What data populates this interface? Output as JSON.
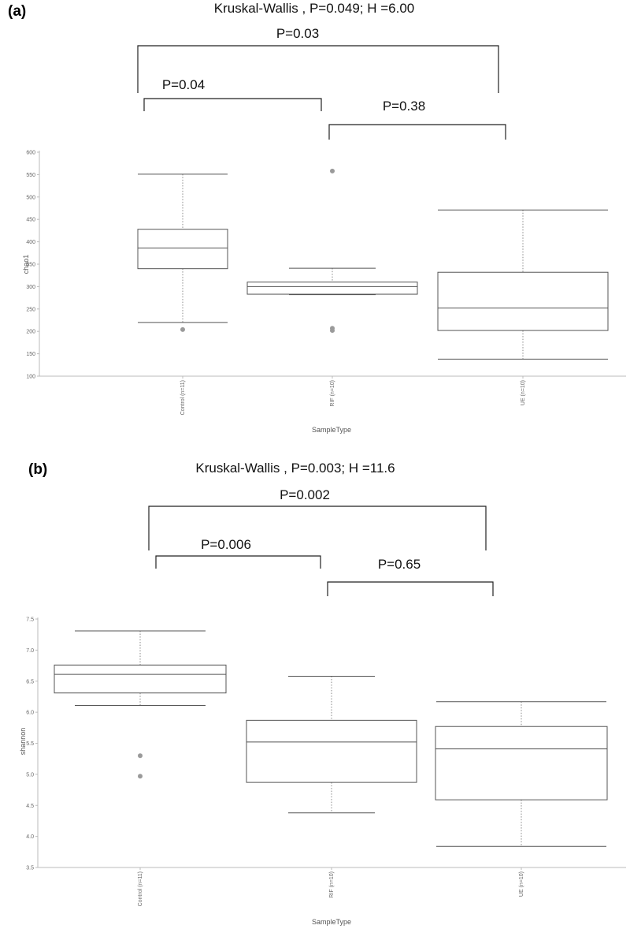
{
  "chart_data": [
    {
      "type": "box",
      "panel_label": "(a)",
      "title": "Kruskal-Wallis , P=0.049; H =6.00",
      "xlabel": "SampleType",
      "ylabel": "chao1",
      "ylim": [
        100,
        600
      ],
      "yticks": [
        100,
        150,
        200,
        250,
        300,
        350,
        400,
        450,
        500,
        550,
        600
      ],
      "categories": [
        "Control (n=11)",
        "RIF (n=10)",
        "UE (n=10)"
      ],
      "boxes": [
        {
          "whisker_low": 220,
          "q1": 340,
          "median": 386,
          "q3": 428,
          "whisker_high": 551,
          "outliers": [
            204
          ]
        },
        {
          "whisker_low": 282,
          "q1": 283,
          "median": 300,
          "q3": 310,
          "whisker_high": 341,
          "outliers": [
            558,
            207,
            202
          ]
        },
        {
          "whisker_low": 138,
          "q1": 202,
          "median": 252,
          "q3": 332,
          "whisker_high": 471,
          "outliers": []
        }
      ],
      "comparisons": [
        {
          "label": "P=0.03",
          "from": 0,
          "to": 2
        },
        {
          "label": "P=0.04",
          "from": 0,
          "to": 1
        },
        {
          "label": "P=0.38",
          "from": 1,
          "to": 2
        }
      ]
    },
    {
      "type": "box",
      "panel_label": "(b)",
      "title": "Kruskal-Wallis , P=0.003; H =11.6",
      "xlabel": "SampleType",
      "ylabel": "shannon",
      "ylim": [
        3.5,
        7.5
      ],
      "yticks": [
        "3.5",
        "4.0",
        "4.5",
        "5.0",
        "5.5",
        "6.0",
        "6.5",
        "7.0",
        "7.5"
      ],
      "categories": [
        "Control (n=11)",
        "RIF (n=10)",
        "UE (n=10)"
      ],
      "boxes": [
        {
          "whisker_low": 6.11,
          "q1": 6.31,
          "median": 6.61,
          "q3": 6.76,
          "whisker_high": 7.31,
          "outliers": [
            5.3,
            4.97
          ]
        },
        {
          "whisker_low": 4.38,
          "q1": 4.87,
          "median": 5.52,
          "q3": 5.87,
          "whisker_high": 6.58,
          "outliers": []
        },
        {
          "whisker_low": 3.84,
          "q1": 4.59,
          "median": 5.41,
          "q3": 5.77,
          "whisker_high": 6.17,
          "outliers": []
        }
      ],
      "comparisons": [
        {
          "label": "P=0.002",
          "from": 0,
          "to": 2
        },
        {
          "label": "P=0.006",
          "from": 0,
          "to": 1
        },
        {
          "label": "P=0.65",
          "from": 1,
          "to": 2
        }
      ]
    }
  ]
}
